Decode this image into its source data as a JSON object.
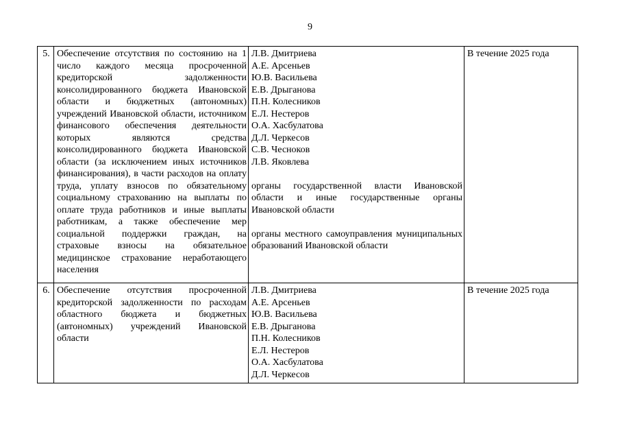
{
  "page": {
    "number": "9"
  },
  "table": {
    "rows": [
      {
        "num": "5.",
        "task": "Обеспечение отсутствия по состоянию на 1 число каждого месяца просроченной кредиторской задолженности консолидированного бюджета Ивановской области и бюджетных (автономных) учреждений Ивановской области, источником финансового обеспечения деятельности которых являются средства консолидированного бюджета Ивановской области (за исключением иных источников финансирования), в части расходов на оплату труда, уплату взносов по обязательному социальному страхованию на выплаты по оплате труда работников и иные выплаты работникам, а также обеспечение мер социальной поддержки  граждан, на страховые взносы на обязательное медицинское страхование неработающего населения",
        "executors": {
          "names": [
            "Л.В. Дмитриева",
            "А.Е. Арсеньев",
            "Ю.В. Васильева",
            "Е.В. Дрыганова",
            "П.Н. Колесников",
            "Е.Л. Нестеров",
            "О.А. Хасбулатова",
            "Д.Л. Черкесов",
            "С.В. Чесноков",
            "Л.В. Яковлева"
          ],
          "organizations": [
            "органы государственной власти Ивановской области и иные государственные органы Ивановской области",
            "органы местного самоуправления муниципальных образований Ивановской области"
          ]
        },
        "deadline": "В течение 2025 года"
      },
      {
        "num": "6.",
        "task": "Обеспечение отсутствия просроченной кредиторской задолженности по расходам областного бюджета и бюджетных (автономных) учреждений Ивановской области",
        "executors": {
          "names": [
            "Л.В. Дмитриева",
            "А.Е. Арсеньев",
            "Ю.В. Васильева",
            "Е.В. Дрыганова",
            "П.Н. Колесников",
            "Е.Л. Нестеров",
            "О.А. Хасбулатова",
            "Д.Л. Черкесов"
          ],
          "organizations": []
        },
        "deadline": "В течение 2025 года"
      }
    ]
  }
}
